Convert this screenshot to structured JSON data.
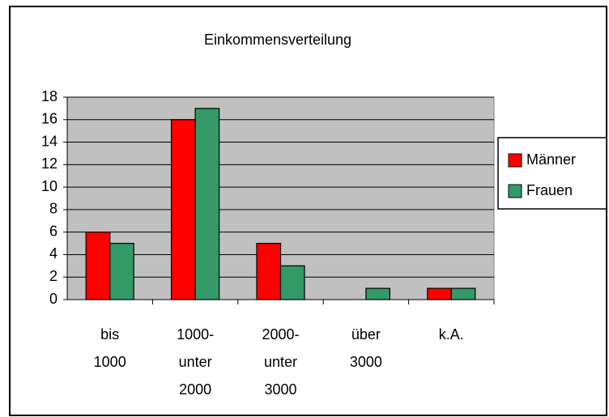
{
  "chart_data": {
    "type": "bar",
    "title": "Einkommensverteilung",
    "categories": [
      "bis 1000",
      "1000-unter 2000",
      "2000-unter 3000",
      "über 3000",
      "k.A."
    ],
    "series": [
      {
        "name": "Männer",
        "color": "#ff0000",
        "values": [
          6,
          16,
          5,
          0,
          1
        ]
      },
      {
        "name": "Frauen",
        "color": "#339966",
        "values": [
          5,
          17,
          3,
          1,
          1
        ]
      }
    ],
    "ylim": [
      0,
      18
    ],
    "yticks": [
      0,
      2,
      4,
      6,
      8,
      10,
      12,
      14,
      16,
      18
    ],
    "grid": true,
    "legend": "right"
  }
}
